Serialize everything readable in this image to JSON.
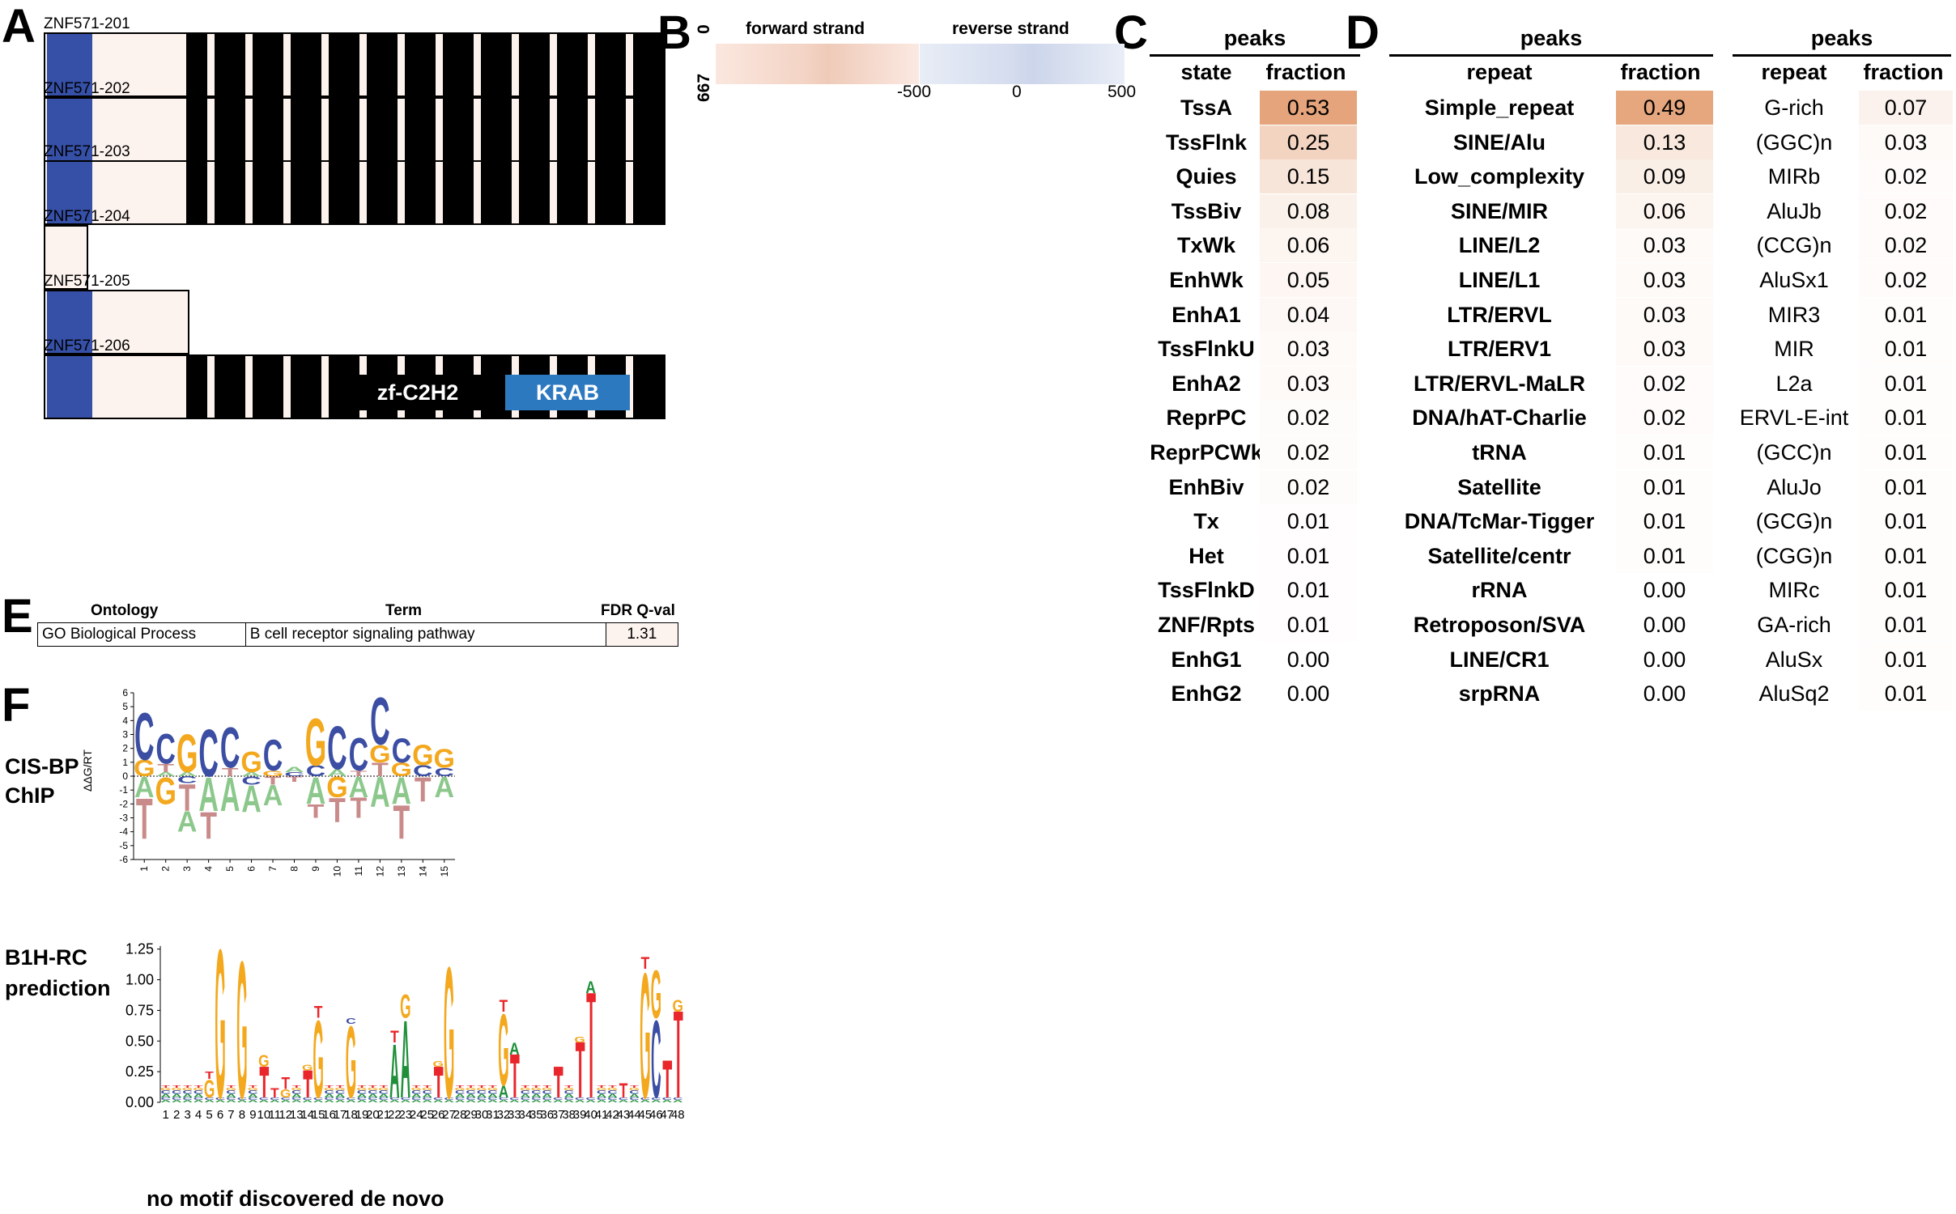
{
  "panel_letters": {
    "a": "A",
    "b": "B",
    "c": "C",
    "d": "D",
    "e": "E",
    "f": "F"
  },
  "panel_a": {
    "isoforms": [
      {
        "name": "ZNF571-201",
        "krab": true,
        "zf_count": 12
      },
      {
        "name": "ZNF571-202",
        "krab": true,
        "zf_count": 12
      },
      {
        "name": "ZNF571-203",
        "krab": true,
        "zf_count": 12
      },
      {
        "name": "ZNF571-204",
        "krab": false,
        "zf_count": 0
      },
      {
        "name": "ZNF571-205",
        "krab": true,
        "zf_count": 0
      },
      {
        "name": "ZNF571-206",
        "krab": true,
        "zf_count": 12
      }
    ],
    "legend": {
      "zf": "zf-C2H2",
      "krab": "KRAB"
    },
    "colors": {
      "krab": "#3650a8",
      "zf": "#000000",
      "protein": "#fdf3ee",
      "legend_krab": "#2d79c0"
    }
  },
  "panel_b": {
    "forward_label": "forward strand",
    "reverse_label": "reverse strand",
    "y_top": "0",
    "y_bottom": "667",
    "x_ticks": [
      "-500",
      "0",
      "500"
    ]
  },
  "panel_c": {
    "title": "peaks",
    "col_state": "state",
    "col_fraction": "fraction",
    "rows": [
      {
        "state": "TssA",
        "fraction": "0.53"
      },
      {
        "state": "TssFlnk",
        "fraction": "0.25"
      },
      {
        "state": "Quies",
        "fraction": "0.15"
      },
      {
        "state": "TssBiv",
        "fraction": "0.08"
      },
      {
        "state": "TxWk",
        "fraction": "0.06"
      },
      {
        "state": "EnhWk",
        "fraction": "0.05"
      },
      {
        "state": "EnhA1",
        "fraction": "0.04"
      },
      {
        "state": "TssFlnkU",
        "fraction": "0.03"
      },
      {
        "state": "EnhA2",
        "fraction": "0.03"
      },
      {
        "state": "ReprPC",
        "fraction": "0.02"
      },
      {
        "state": "ReprPCWk",
        "fraction": "0.02"
      },
      {
        "state": "EnhBiv",
        "fraction": "0.02"
      },
      {
        "state": "Tx",
        "fraction": "0.01"
      },
      {
        "state": "Het",
        "fraction": "0.01"
      },
      {
        "state": "TssFlnkD",
        "fraction": "0.01"
      },
      {
        "state": "ZNF/Rpts",
        "fraction": "0.01"
      },
      {
        "state": "EnhG1",
        "fraction": "0.00"
      },
      {
        "state": "EnhG2",
        "fraction": "0.00"
      }
    ]
  },
  "panel_d": {
    "left": {
      "title": "peaks",
      "col_repeat": "repeat",
      "col_fraction": "fraction",
      "rows": [
        {
          "repeat": "Simple_repeat",
          "fraction": "0.49"
        },
        {
          "repeat": "SINE/Alu",
          "fraction": "0.13"
        },
        {
          "repeat": "Low_complexity",
          "fraction": "0.09"
        },
        {
          "repeat": "SINE/MIR",
          "fraction": "0.06"
        },
        {
          "repeat": "LINE/L2",
          "fraction": "0.03"
        },
        {
          "repeat": "LINE/L1",
          "fraction": "0.03"
        },
        {
          "repeat": "LTR/ERVL",
          "fraction": "0.03"
        },
        {
          "repeat": "LTR/ERV1",
          "fraction": "0.03"
        },
        {
          "repeat": "LTR/ERVL-MaLR",
          "fraction": "0.02"
        },
        {
          "repeat": "DNA/hAT-Charlie",
          "fraction": "0.02"
        },
        {
          "repeat": "tRNA",
          "fraction": "0.01"
        },
        {
          "repeat": "Satellite",
          "fraction": "0.01"
        },
        {
          "repeat": "DNA/TcMar-Tigger",
          "fraction": "0.01"
        },
        {
          "repeat": "Satellite/centr",
          "fraction": "0.01"
        },
        {
          "repeat": "rRNA",
          "fraction": "0.00"
        },
        {
          "repeat": "Retroposon/SVA",
          "fraction": "0.00"
        },
        {
          "repeat": "LINE/CR1",
          "fraction": "0.00"
        },
        {
          "repeat": "srpRNA",
          "fraction": "0.00"
        }
      ]
    },
    "right": {
      "title": "peaks",
      "col_repeat": "repeat",
      "col_fraction": "fraction",
      "rows": [
        {
          "repeat": "G-rich",
          "fraction": "0.07"
        },
        {
          "repeat": "(GGC)n",
          "fraction": "0.03"
        },
        {
          "repeat": "MIRb",
          "fraction": "0.02"
        },
        {
          "repeat": "AluJb",
          "fraction": "0.02"
        },
        {
          "repeat": "(CCG)n",
          "fraction": "0.02"
        },
        {
          "repeat": "AluSx1",
          "fraction": "0.02"
        },
        {
          "repeat": "MIR3",
          "fraction": "0.01"
        },
        {
          "repeat": "MIR",
          "fraction": "0.01"
        },
        {
          "repeat": "L2a",
          "fraction": "0.01"
        },
        {
          "repeat": "ERVL-E-int",
          "fraction": "0.01"
        },
        {
          "repeat": "(GCC)n",
          "fraction": "0.01"
        },
        {
          "repeat": "AluJo",
          "fraction": "0.01"
        },
        {
          "repeat": "(GCG)n",
          "fraction": "0.01"
        },
        {
          "repeat": "(CGG)n",
          "fraction": "0.01"
        },
        {
          "repeat": "MIRc",
          "fraction": "0.01"
        },
        {
          "repeat": "GA-rich",
          "fraction": "0.01"
        },
        {
          "repeat": "AluSx",
          "fraction": "0.01"
        },
        {
          "repeat": "AluSq2",
          "fraction": "0.01"
        }
      ]
    }
  },
  "panel_e": {
    "headers": {
      "ontology": "Ontology",
      "term": "Term",
      "fdr": "FDR Q-val"
    },
    "row": {
      "ontology": "GO Biological Process",
      "term": "B cell receptor signaling pathway",
      "fdr": "1.31"
    }
  },
  "panel_f": {
    "cisbp_label_line1": "CIS-BP",
    "cisbp_label_line2": "ChIP",
    "cisbp_ylabel": "ΔΔG/RT",
    "cisbp_yticks": [
      "6",
      "5",
      "4",
      "3",
      "2",
      "1",
      "0",
      "-1",
      "-2",
      "-3",
      "-4",
      "-5",
      "-6"
    ],
    "cisbp_xticks": [
      "1",
      "2",
      "3",
      "4",
      "5",
      "6",
      "7",
      "8",
      "9",
      "10",
      "11",
      "12",
      "13",
      "14",
      "15"
    ],
    "b1h_label_line1": "B1H-RC",
    "b1h_label_line2": "prediction",
    "b1h_yticks": [
      "1.25",
      "1.00",
      "0.75",
      "0.50",
      "0.25",
      "0.00"
    ],
    "b1h_xticks": [
      "1",
      "2",
      "3",
      "4",
      "5",
      "6",
      "7",
      "8",
      "9",
      "10",
      "11",
      "12",
      "13",
      "14",
      "15",
      "16",
      "17",
      "18",
      "19",
      "20",
      "21",
      "22",
      "23",
      "24",
      "25",
      "26",
      "27",
      "28",
      "29",
      "30",
      "31",
      "32",
      "33",
      "34",
      "35",
      "36",
      "37",
      "38",
      "39",
      "40",
      "41",
      "42",
      "43",
      "44",
      "45",
      "46",
      "47",
      "48"
    ],
    "bottom_note": "no motif discovered de novo"
  }
}
